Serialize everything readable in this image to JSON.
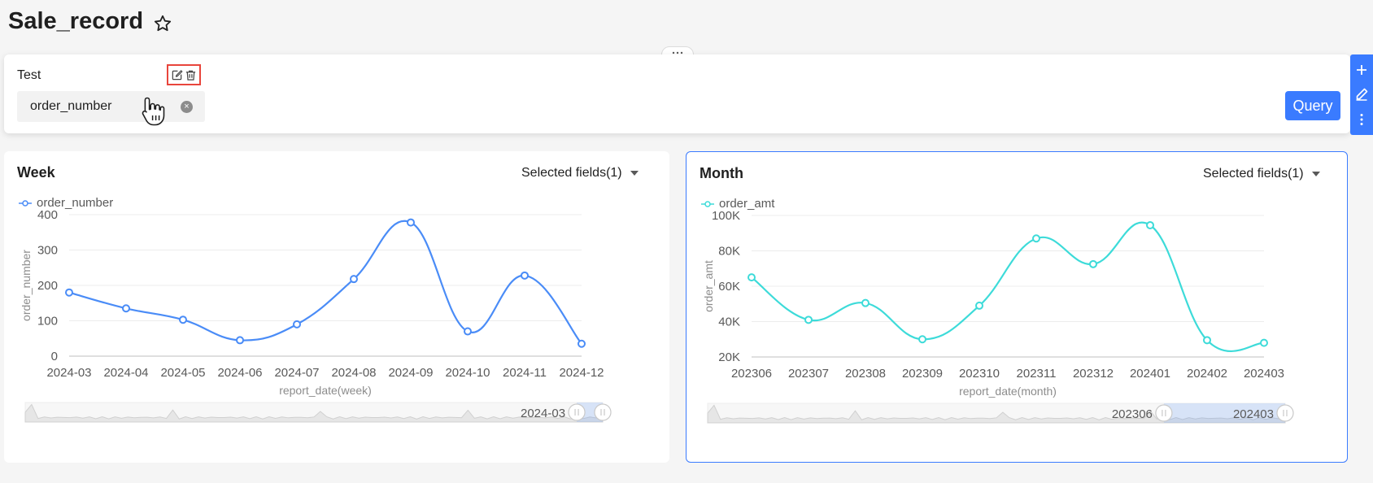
{
  "page": {
    "title": "Sale_record"
  },
  "filter": {
    "label": "Test",
    "field_value": "order_number",
    "clear_glyph": "×",
    "query_label": "Query",
    "icons": [
      "edit-icon",
      "delete-icon"
    ]
  },
  "side_toolbar": {
    "icons": [
      "plus-icon",
      "pencil-icon",
      "more-vertical-icon"
    ]
  },
  "colors": {
    "accent": "#3a7bff",
    "week_series": "#4a8cf7",
    "month_series": "#3ddbd9",
    "highlight": "#e8453c"
  },
  "charts": {
    "week": {
      "title": "Week",
      "selected_fields": "Selected fields(1)",
      "zoom_start_label": "2024-03"
    },
    "month": {
      "title": "Month",
      "selected_fields": "Selected fields(1)",
      "zoom_start_label": "202306",
      "zoom_end_label": "202403"
    }
  },
  "chart_data": [
    {
      "type": "line",
      "categories": [
        "2024-03",
        "2024-04",
        "2024-05",
        "2024-06",
        "2024-07",
        "2024-08",
        "2024-09",
        "2024-10",
        "2024-11",
        "2024-12"
      ],
      "series": [
        {
          "name": "order_number",
          "values": [
            180,
            135,
            103,
            45,
            90,
            218,
            378,
            70,
            228,
            35
          ]
        }
      ],
      "xlabel": "report_date(week)",
      "ylabel": "order_number",
      "ylim": [
        0,
        400
      ],
      "yticks": [
        0,
        100,
        200,
        300,
        400
      ],
      "ytick_labels": [
        "0",
        "100",
        "200",
        "300",
        "400"
      ],
      "grid": true,
      "legend": "top-left"
    },
    {
      "type": "line",
      "categories": [
        "202306",
        "202307",
        "202308",
        "202309",
        "202310",
        "202311",
        "202312",
        "202401",
        "202402",
        "202403"
      ],
      "series": [
        {
          "name": "order_amt",
          "values": [
            65000,
            41000,
            50500,
            30000,
            49000,
            87000,
            72500,
            94500,
            29500,
            28000
          ]
        }
      ],
      "xlabel": "report_date(month)",
      "ylabel": "order_amt",
      "ylim": [
        20000,
        100000
      ],
      "yticks": [
        20000,
        40000,
        60000,
        80000,
        100000
      ],
      "ytick_labels": [
        "20K",
        "40K",
        "60K",
        "80K",
        "100K"
      ],
      "grid": true,
      "legend": "top-left"
    }
  ]
}
